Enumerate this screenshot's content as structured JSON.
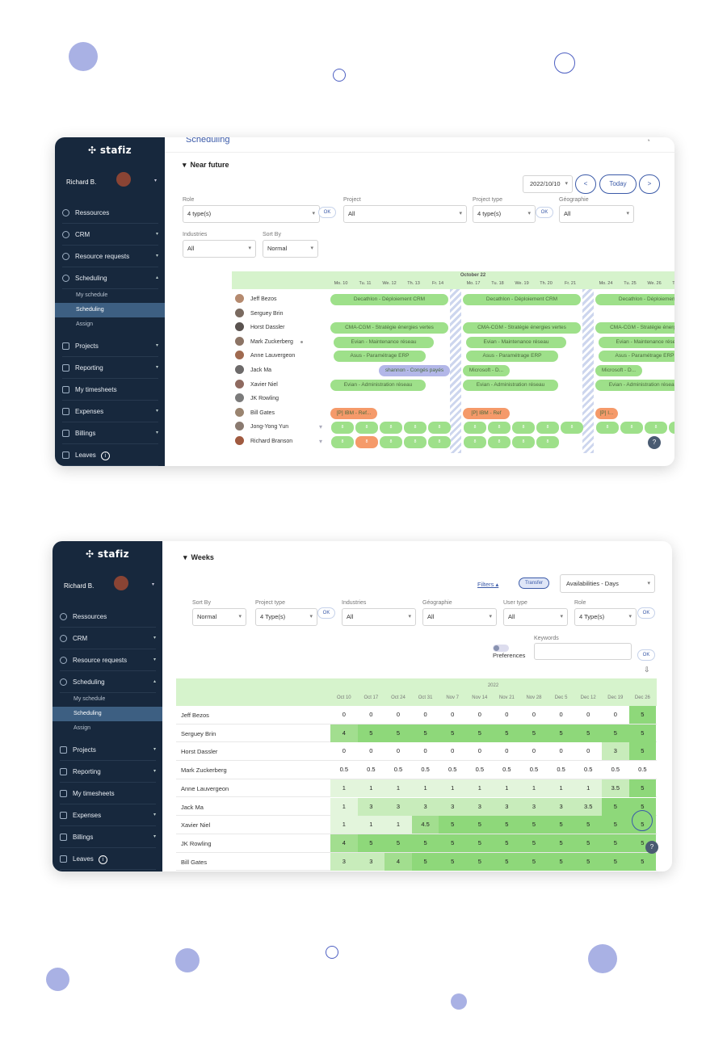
{
  "brand": "stafiz",
  "user": "Richard B.",
  "colors": {
    "sidebar": "#17283d",
    "accent": "#3b5aa8",
    "green": "#8ed87a",
    "orange": "#f59a6a",
    "purple": "#b3b7e8"
  },
  "menu": [
    {
      "label": "Ressources",
      "icon": "user-icon",
      "chevron": false
    },
    {
      "label": "CRM",
      "icon": "user-circle-icon",
      "chevron": true
    },
    {
      "label": "Resource requests",
      "icon": "user-request-icon",
      "chevron": true
    },
    {
      "label": "Scheduling",
      "icon": "clock-icon",
      "chevron": true
    }
  ],
  "submenu": [
    "My schedule",
    "Scheduling",
    "Assign"
  ],
  "menu2": [
    {
      "label": "Projects",
      "icon": "star-icon"
    },
    {
      "label": "Reporting",
      "icon": "chart-icon"
    },
    {
      "label": "My timesheets",
      "icon": "calendar-icon"
    },
    {
      "label": "Expenses",
      "icon": "star-icon"
    },
    {
      "label": "Billings",
      "icon": "document-icon"
    },
    {
      "label": "Leaves",
      "icon": "sun-icon"
    }
  ],
  "win1": {
    "header": "Scheduling",
    "section": "Near future",
    "date": "2022/10/10",
    "prev": "<",
    "today": "Today",
    "next": ">",
    "filters": [
      {
        "label": "Role",
        "value": "4 type(s)"
      },
      {
        "label": "Project",
        "value": "All"
      },
      {
        "label": "Project type",
        "value": "4 type(s)"
      },
      {
        "label": "Géographie",
        "value": "All"
      },
      {
        "label": "Industries",
        "value": "All"
      },
      {
        "label": "Sort By",
        "value": "Normal"
      }
    ],
    "ok": "OK",
    "month": "October 22",
    "days": [
      "Mo. 10",
      "Tu. 11",
      "We. 12",
      "Th. 13",
      "Fr. 14",
      "Mo. 17",
      "Tu. 18",
      "We. 19",
      "Th. 20",
      "Fr. 21",
      "Mo. 24",
      "Tu. 25",
      "We. 26",
      "Th. 27",
      "Fr. 28"
    ],
    "people": [
      "Jeff Bezos",
      "Serguey Brin",
      "Horst Dassler",
      "Mark Zuckerberg",
      "Anne Lauvergeon",
      "Jack Ma",
      "Xavier Niel",
      "JK Rowling",
      "Bill Gates",
      "Jong-Yong Yun",
      "Richard Branson"
    ],
    "pills": {
      "decathlon": "Decathlon - Déploiement CRM",
      "cma": "CMA-CGM - Stratégie énergies vertes",
      "evian_m": "Evian - Maintenance réseau",
      "asus": "Asus - Paramétrage ERP",
      "shannon": "shannon - Congés payés",
      "microsoft": "Microsoft - D...",
      "evian_a": "Evian - Administration réseau",
      "ibm1": "[P] IBM - Ref...",
      "ibm2": "[P] IBM - Ref",
      "ibm3": "[P] I..."
    },
    "small": "8"
  },
  "win2": {
    "section": "Weeks",
    "filters_link": "Filters",
    "transfer": "Transfer",
    "view": "Availabilities - Days",
    "filters": [
      {
        "label": "Sort By",
        "value": "Normal"
      },
      {
        "label": "Project type",
        "value": "4 Type(s)"
      },
      {
        "label": "Industries",
        "value": "All"
      },
      {
        "label": "Géographie",
        "value": "All"
      },
      {
        "label": "User type",
        "value": "All"
      },
      {
        "label": "Role",
        "value": "4 Type(s)"
      }
    ],
    "ok": "OK",
    "keywords": "Keywords",
    "preferences": "Preferences",
    "year": "2022",
    "weeks": [
      "Oct 10",
      "Oct 17",
      "Oct 24",
      "Oct 31",
      "Nov 7",
      "Nov 14",
      "Nov 21",
      "Nov 28",
      "Dec 5",
      "Dec 12",
      "Dec 19",
      "Dec 26"
    ],
    "rows": [
      {
        "name": "Jeff Bezos",
        "values": [
          "0",
          "0",
          "0",
          "0",
          "0",
          "0",
          "0",
          "0",
          "0",
          "0",
          "0",
          "5"
        ]
      },
      {
        "name": "Serguey Brin",
        "values": [
          "4",
          "5",
          "5",
          "5",
          "5",
          "5",
          "5",
          "5",
          "5",
          "5",
          "5",
          "5"
        ]
      },
      {
        "name": "Horst Dassler",
        "values": [
          "0",
          "0",
          "0",
          "0",
          "0",
          "0",
          "0",
          "0",
          "0",
          "0",
          "3",
          "5"
        ]
      },
      {
        "name": "Mark Zuckerberg",
        "values": [
          "0.5",
          "0.5",
          "0.5",
          "0.5",
          "0.5",
          "0.5",
          "0.5",
          "0.5",
          "0.5",
          "0.5",
          "0.5",
          "0.5"
        ]
      },
      {
        "name": "Anne Lauvergeon",
        "values": [
          "1",
          "1",
          "1",
          "1",
          "1",
          "1",
          "1",
          "1",
          "1",
          "1",
          "3.5",
          "5"
        ]
      },
      {
        "name": "Jack Ma",
        "values": [
          "1",
          "3",
          "3",
          "3",
          "3",
          "3",
          "3",
          "3",
          "3",
          "3.5",
          "5",
          "5"
        ]
      },
      {
        "name": "Xavier Niel",
        "values": [
          "1",
          "1",
          "1",
          "4.5",
          "5",
          "5",
          "5",
          "5",
          "5",
          "5",
          "5",
          "5"
        ]
      },
      {
        "name": "JK Rowling",
        "values": [
          "4",
          "5",
          "5",
          "5",
          "5",
          "5",
          "5",
          "5",
          "5",
          "5",
          "5",
          "5"
        ]
      },
      {
        "name": "Bill Gates",
        "values": [
          "3",
          "3",
          "4",
          "5",
          "5",
          "5",
          "5",
          "5",
          "5",
          "5",
          "5",
          "5"
        ]
      }
    ]
  }
}
